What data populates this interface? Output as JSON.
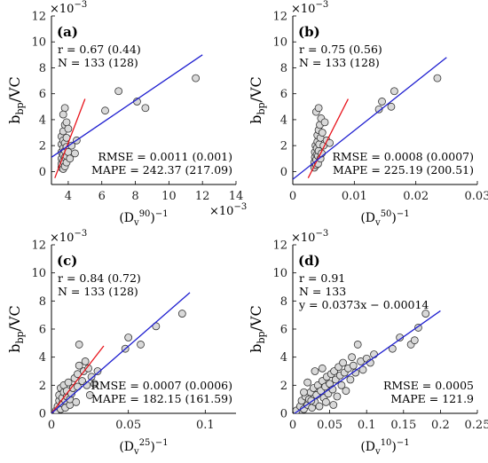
{
  "figure": {
    "scale_label": "×10",
    "scale_exp": "−3"
  },
  "chart_data": [
    {
      "type": "scatter",
      "panel_label": "(a)",
      "ylabel_main": "b",
      "ylabel_sub": "bp",
      "ylabel_tail": "/VC",
      "xlabel_open": "(D",
      "xlabel_sub": "v",
      "xlabel_sup": "90",
      "xlabel_close": ")",
      "xlabel_exp": "−1",
      "xlim": [
        3,
        14
      ],
      "ylim": [
        -1,
        12
      ],
      "xticks": [
        4,
        6,
        8,
        10,
        12,
        14
      ],
      "xtick_labels": [
        "4",
        "6",
        "8",
        "10",
        "12",
        "14"
      ],
      "yticks": [
        0,
        2,
        4,
        6,
        8,
        10,
        12
      ],
      "ytick_labels": [
        "0",
        "2",
        "4",
        "6",
        "8",
        "10",
        "12"
      ],
      "y_scale_label": true,
      "x_scale_label": true,
      "stats_top": [
        "r = 0.67 (0.44)",
        "N = 133 (128)"
      ],
      "stats_bottom": [
        "RMSE = 0.0011 (0.001)",
        "MAPE = 242.37 (217.09)"
      ],
      "fit_blue": {
        "x": [
          3,
          12
        ],
        "y": [
          1.1,
          9.0
        ]
      },
      "fit_red": {
        "x": [
          3.2,
          5.0
        ],
        "y": [
          -0.5,
          5.6
        ]
      },
      "points": [
        [
          3.6,
          0.3
        ],
        [
          3.6,
          0.6
        ],
        [
          3.6,
          1.0
        ],
        [
          3.6,
          1.5
        ],
        [
          3.6,
          2.1
        ],
        [
          3.6,
          2.7
        ],
        [
          3.7,
          0.2
        ],
        [
          3.7,
          0.8
        ],
        [
          3.7,
          1.3
        ],
        [
          3.7,
          1.8
        ],
        [
          3.7,
          2.4
        ],
        [
          3.7,
          3.1
        ],
        [
          3.8,
          0.4
        ],
        [
          3.8,
          1.1
        ],
        [
          3.8,
          1.6
        ],
        [
          3.8,
          2.2
        ],
        [
          3.8,
          3.6
        ],
        [
          3.8,
          4.9
        ],
        [
          3.9,
          0.7
        ],
        [
          3.9,
          1.2
        ],
        [
          3.9,
          1.9
        ],
        [
          3.9,
          2.6
        ],
        [
          3.9,
          3.8
        ],
        [
          3.7,
          4.4
        ],
        [
          4.0,
          1.5
        ],
        [
          4.0,
          3.3
        ],
        [
          4.1,
          1.0
        ],
        [
          4.2,
          2.0
        ],
        [
          4.4,
          1.4
        ],
        [
          4.5,
          2.4
        ],
        [
          6.2,
          4.7
        ],
        [
          7.0,
          6.2
        ],
        [
          8.1,
          5.4
        ],
        [
          8.6,
          4.9
        ],
        [
          11.6,
          7.2
        ]
      ]
    },
    {
      "type": "scatter",
      "panel_label": "(b)",
      "ylabel_main": "b",
      "ylabel_sub": "bp",
      "ylabel_tail": "/VC",
      "xlabel_open": "(D",
      "xlabel_sub": "v",
      "xlabel_sup": "50",
      "xlabel_close": ")",
      "xlabel_exp": "−1",
      "xlim": [
        0,
        0.03
      ],
      "ylim": [
        -1,
        12
      ],
      "xticks": [
        0,
        0.01,
        0.02,
        0.03
      ],
      "xtick_labels": [
        "0",
        "0.01",
        "0.02",
        "0.03"
      ],
      "yticks": [
        0,
        2,
        4,
        6,
        8,
        10,
        12
      ],
      "ytick_labels": [
        "0",
        "2",
        "4",
        "6",
        "8",
        "10",
        "12"
      ],
      "y_scale_label": true,
      "x_scale_label": false,
      "stats_top": [
        "r = 0.75 (0.56)",
        "N = 133 (128)"
      ],
      "stats_bottom": [
        "RMSE = 0.0008 (0.0007)",
        "MAPE = 225.19 (200.51)"
      ],
      "fit_blue": {
        "x": [
          0,
          0.025
        ],
        "y": [
          -0.6,
          8.8
        ]
      },
      "fit_red": {
        "x": [
          0.0025,
          0.009
        ],
        "y": [
          -0.5,
          5.6
        ]
      },
      "points": [
        [
          0.0035,
          0.3
        ],
        [
          0.0035,
          0.7
        ],
        [
          0.0036,
          1.1
        ],
        [
          0.0036,
          1.5
        ],
        [
          0.0037,
          2.0
        ],
        [
          0.0038,
          0.5
        ],
        [
          0.0038,
          0.9
        ],
        [
          0.0039,
          1.3
        ],
        [
          0.0039,
          1.8
        ],
        [
          0.004,
          2.3
        ],
        [
          0.004,
          2.8
        ],
        [
          0.0041,
          0.6
        ],
        [
          0.0041,
          1.2
        ],
        [
          0.0042,
          1.6
        ],
        [
          0.0042,
          3.2
        ],
        [
          0.0043,
          2.1
        ],
        [
          0.0044,
          3.6
        ],
        [
          0.0045,
          1.0
        ],
        [
          0.0045,
          2.6
        ],
        [
          0.0046,
          4.1
        ],
        [
          0.0047,
          1.4
        ],
        [
          0.0048,
          3.0
        ],
        [
          0.005,
          2.0
        ],
        [
          0.0052,
          3.8
        ],
        [
          0.0055,
          2.4
        ],
        [
          0.006,
          2.2
        ],
        [
          0.0038,
          4.6
        ],
        [
          0.0042,
          4.9
        ],
        [
          0.014,
          4.8
        ],
        [
          0.0145,
          5.4
        ],
        [
          0.016,
          5.0
        ],
        [
          0.0165,
          6.2
        ],
        [
          0.0235,
          7.2
        ]
      ]
    },
    {
      "type": "scatter",
      "panel_label": "(c)",
      "ylabel_main": "b",
      "ylabel_sub": "bp",
      "ylabel_tail": "/VC",
      "xlabel_open": "(D",
      "xlabel_sub": "v",
      "xlabel_sup": "25",
      "xlabel_close": ")",
      "xlabel_exp": "−1",
      "xlim": [
        0,
        0.12
      ],
      "ylim": [
        0,
        12
      ],
      "xticks": [
        0,
        0.05,
        0.1
      ],
      "xtick_labels": [
        "0",
        "0.05",
        "0.1"
      ],
      "yticks": [
        0,
        2,
        4,
        6,
        8,
        10,
        12
      ],
      "ytick_labels": [
        "0",
        "2",
        "4",
        "6",
        "8",
        "10",
        "12"
      ],
      "y_scale_label": true,
      "x_scale_label": false,
      "stats_top": [
        "r = 0.84 (0.72)",
        "N = 133 (128)"
      ],
      "stats_bottom": [
        "RMSE = 0.0007 (0.0006)",
        "MAPE = 182.15 (161.59)"
      ],
      "fit_blue": {
        "x": [
          0,
          0.09
        ],
        "y": [
          0.0,
          8.6
        ]
      },
      "fit_red": {
        "x": [
          0,
          0.034
        ],
        "y": [
          0.0,
          4.8
        ]
      },
      "points": [
        [
          0.003,
          0.2
        ],
        [
          0.004,
          0.5
        ],
        [
          0.005,
          0.9
        ],
        [
          0.005,
          1.3
        ],
        [
          0.006,
          0.3
        ],
        [
          0.006,
          1.8
        ],
        [
          0.007,
          0.7
        ],
        [
          0.007,
          1.1
        ],
        [
          0.008,
          1.5
        ],
        [
          0.008,
          2.0
        ],
        [
          0.009,
          0.4
        ],
        [
          0.009,
          0.9
        ],
        [
          0.01,
          1.2
        ],
        [
          0.01,
          1.6
        ],
        [
          0.011,
          2.2
        ],
        [
          0.012,
          0.6
        ],
        [
          0.012,
          1.0
        ],
        [
          0.013,
          1.4
        ],
        [
          0.014,
          1.8
        ],
        [
          0.015,
          2.5
        ],
        [
          0.016,
          0.8
        ],
        [
          0.017,
          1.9
        ],
        [
          0.017,
          2.8
        ],
        [
          0.018,
          3.4
        ],
        [
          0.018,
          4.9
        ],
        [
          0.02,
          2.3
        ],
        [
          0.021,
          3.0
        ],
        [
          0.022,
          3.7
        ],
        [
          0.023,
          2.0
        ],
        [
          0.024,
          3.2
        ],
        [
          0.026,
          2.6
        ],
        [
          0.025,
          1.3
        ],
        [
          0.028,
          2.1
        ],
        [
          0.03,
          3.0
        ],
        [
          0.048,
          4.6
        ],
        [
          0.05,
          5.4
        ],
        [
          0.058,
          4.9
        ],
        [
          0.068,
          6.2
        ],
        [
          0.085,
          7.1
        ]
      ]
    },
    {
      "type": "scatter",
      "panel_label": "(d)",
      "ylabel_main": "b",
      "ylabel_sub": "bp",
      "ylabel_tail": "/VC",
      "xlabel_open": "(D",
      "xlabel_sub": "v",
      "xlabel_sup": "10",
      "xlabel_close": ")",
      "xlabel_exp": "−1",
      "xlim": [
        0,
        0.25
      ],
      "ylim": [
        0,
        12
      ],
      "xticks": [
        0,
        0.05,
        0.1,
        0.15,
        0.2,
        0.25
      ],
      "xtick_labels": [
        "0",
        "0.05",
        "0.1",
        "0.15",
        "0.2",
        "0.25"
      ],
      "yticks": [
        0,
        2,
        4,
        6,
        8,
        10,
        12
      ],
      "ytick_labels": [
        "0",
        "2",
        "4",
        "6",
        "8",
        "10",
        "12"
      ],
      "y_scale_label": true,
      "x_scale_label": false,
      "stats_top": [
        "r = 0.91",
        "N = 133",
        "y = 0.0373x − 0.00014"
      ],
      "stats_bottom": [
        "RMSE = 0.0005",
        "MAPE = 121.9"
      ],
      "fit_blue": {
        "x": [
          0,
          0.2
        ],
        "y": [
          -0.1,
          7.3
        ]
      },
      "points": [
        [
          0.005,
          0.2
        ],
        [
          0.01,
          0.5
        ],
        [
          0.012,
          0.9
        ],
        [
          0.015,
          0.3
        ],
        [
          0.017,
          1.2
        ],
        [
          0.02,
          0.6
        ],
        [
          0.022,
          1.0
        ],
        [
          0.024,
          1.5
        ],
        [
          0.026,
          0.4
        ],
        [
          0.028,
          1.8
        ],
        [
          0.03,
          0.8
        ],
        [
          0.032,
          1.3
        ],
        [
          0.034,
          2.0
        ],
        [
          0.036,
          0.5
        ],
        [
          0.038,
          1.6
        ],
        [
          0.04,
          2.3
        ],
        [
          0.042,
          1.1
        ],
        [
          0.044,
          1.9
        ],
        [
          0.046,
          2.6
        ],
        [
          0.048,
          1.4
        ],
        [
          0.05,
          2.1
        ],
        [
          0.052,
          2.8
        ],
        [
          0.054,
          1.7
        ],
        [
          0.056,
          3.0
        ],
        [
          0.058,
          2.4
        ],
        [
          0.06,
          1.2
        ],
        [
          0.062,
          3.3
        ],
        [
          0.064,
          2.7
        ],
        [
          0.066,
          2.0
        ],
        [
          0.068,
          3.6
        ],
        [
          0.07,
          2.9
        ],
        [
          0.072,
          1.6
        ],
        [
          0.075,
          3.2
        ],
        [
          0.078,
          2.4
        ],
        [
          0.08,
          4.0
        ],
        [
          0.082,
          3.4
        ],
        [
          0.085,
          2.9
        ],
        [
          0.088,
          4.9
        ],
        [
          0.092,
          3.7
        ],
        [
          0.095,
          3.1
        ],
        [
          0.1,
          3.9
        ],
        [
          0.105,
          3.6
        ],
        [
          0.11,
          4.2
        ],
        [
          0.03,
          3.0
        ],
        [
          0.04,
          3.2
        ],
        [
          0.015,
          1.5
        ],
        [
          0.02,
          2.2
        ],
        [
          0.025,
          0.9
        ],
        [
          0.045,
          0.8
        ],
        [
          0.055,
          0.6
        ],
        [
          0.145,
          5.4
        ],
        [
          0.16,
          4.9
        ],
        [
          0.165,
          5.2
        ],
        [
          0.17,
          6.1
        ],
        [
          0.18,
          7.1
        ],
        [
          0.135,
          4.6
        ]
      ]
    }
  ]
}
